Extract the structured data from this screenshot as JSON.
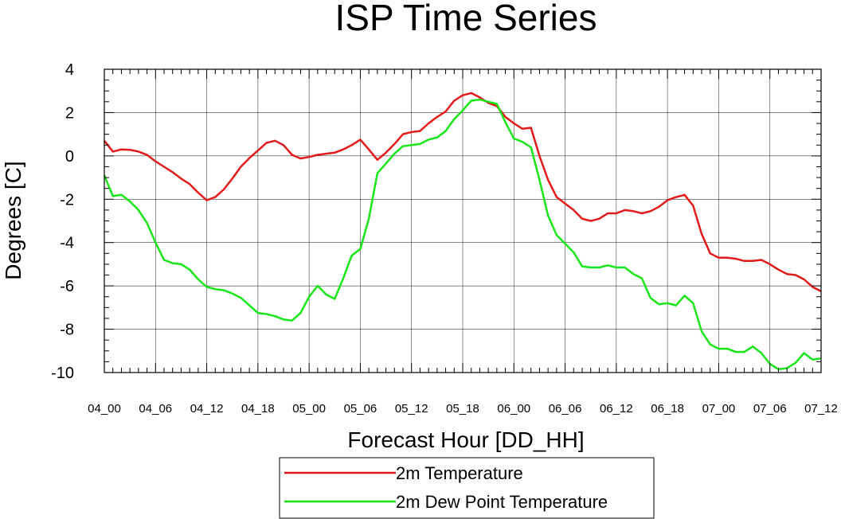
{
  "chart_data": {
    "type": "line",
    "title": "ISP Time Series",
    "xlabel": "Forecast Hour [DD_HH]",
    "ylabel": "Degrees [C]",
    "xlim": [
      0,
      84
    ],
    "ylim": [
      -10,
      4
    ],
    "x_tick_labels": [
      "04_00",
      "04_06",
      "04_12",
      "04_18",
      "05_00",
      "05_06",
      "05_12",
      "05_18",
      "06_00",
      "06_06",
      "06_12",
      "06_18",
      "07_00",
      "07_06",
      "07_12"
    ],
    "y_ticks": [
      4,
      2,
      0,
      -2,
      -4,
      -6,
      -8,
      -10
    ],
    "grid": true,
    "legend_position": "bottom-center",
    "series": [
      {
        "name": "2m Temperature",
        "color": "#e31a1a",
        "x": [
          0,
          1,
          2,
          3,
          4,
          5,
          6,
          7,
          8,
          9,
          10,
          11,
          12,
          13,
          14,
          15,
          16,
          17,
          18,
          19,
          20,
          21,
          22,
          23,
          24,
          25,
          26,
          27,
          28,
          29,
          30,
          31,
          32,
          33,
          34,
          35,
          36,
          37,
          38,
          39,
          40,
          41,
          42,
          43,
          44,
          45,
          46,
          47,
          48,
          49,
          50,
          51,
          52,
          53,
          54,
          55,
          56,
          57,
          58,
          59,
          60,
          61,
          62,
          63,
          64,
          65,
          66,
          67,
          68,
          69,
          70,
          71,
          72,
          73,
          74,
          75,
          76,
          77,
          78,
          79,
          80,
          81,
          82,
          83,
          84
        ],
        "values": [
          0.7,
          0.2,
          0.3,
          0.28,
          0.2,
          0.05,
          -0.25,
          -0.5,
          -0.75,
          -1.05,
          -1.3,
          -1.7,
          -2.05,
          -1.9,
          -1.55,
          -1.05,
          -0.5,
          -0.1,
          0.25,
          0.6,
          0.7,
          0.5,
          0.05,
          -0.12,
          -0.05,
          0.05,
          0.1,
          0.15,
          0.3,
          0.5,
          0.75,
          0.3,
          -0.18,
          0.15,
          0.55,
          1.0,
          1.1,
          1.15,
          1.5,
          1.8,
          2.05,
          2.55,
          2.8,
          2.9,
          2.7,
          2.45,
          2.3,
          1.8,
          1.5,
          1.25,
          1.3,
          0.0,
          -1.1,
          -1.9,
          -2.2,
          -2.5,
          -2.9,
          -3.0,
          -2.9,
          -2.65,
          -2.65,
          -2.5,
          -2.55,
          -2.65,
          -2.55,
          -2.35,
          -2.05,
          -1.9,
          -1.8,
          -2.3,
          -3.6,
          -4.5,
          -4.7,
          -4.7,
          -4.75,
          -4.85,
          -4.85,
          -4.8,
          -5.0,
          -5.25,
          -5.45,
          -5.5,
          -5.7,
          -6.05,
          -6.25
        ]
      },
      {
        "name": "2m Dew Point Temperature",
        "color": "#19e619",
        "x": [
          0,
          1,
          2,
          3,
          4,
          5,
          6,
          7,
          8,
          9,
          10,
          11,
          12,
          13,
          14,
          15,
          16,
          17,
          18,
          19,
          20,
          21,
          22,
          23,
          24,
          25,
          26,
          27,
          28,
          29,
          30,
          31,
          32,
          33,
          34,
          35,
          36,
          37,
          38,
          39,
          40,
          41,
          42,
          43,
          44,
          45,
          46,
          47,
          48,
          49,
          50,
          51,
          52,
          53,
          54,
          55,
          56,
          57,
          58,
          59,
          60,
          61,
          62,
          63,
          64,
          65,
          66,
          67,
          68,
          69,
          70,
          71,
          72,
          73,
          74,
          75,
          76,
          77,
          78,
          79,
          80,
          81,
          82,
          83,
          84
        ],
        "values": [
          -0.9,
          -1.85,
          -1.8,
          -2.1,
          -2.5,
          -3.1,
          -4.0,
          -4.8,
          -4.95,
          -5.0,
          -5.25,
          -5.7,
          -6.05,
          -6.15,
          -6.2,
          -6.35,
          -6.55,
          -6.9,
          -7.25,
          -7.3,
          -7.4,
          -7.55,
          -7.6,
          -7.25,
          -6.5,
          -6.0,
          -6.4,
          -6.6,
          -5.65,
          -4.6,
          -4.3,
          -2.9,
          -0.8,
          -0.35,
          0.1,
          0.45,
          0.5,
          0.55,
          0.75,
          0.85,
          1.15,
          1.7,
          2.1,
          2.55,
          2.6,
          2.5,
          2.4,
          1.55,
          0.8,
          0.65,
          0.4,
          -1.1,
          -2.75,
          -3.65,
          -4.05,
          -4.45,
          -5.1,
          -5.15,
          -5.15,
          -5.05,
          -5.15,
          -5.15,
          -5.45,
          -5.65,
          -6.55,
          -6.85,
          -6.8,
          -6.9,
          -6.45,
          -6.8,
          -8.1,
          -8.7,
          -8.9,
          -8.9,
          -9.05,
          -9.05,
          -8.8,
          -9.1,
          -9.6,
          -9.85,
          -9.8,
          -9.55,
          -9.1,
          -9.4,
          -9.35
        ]
      }
    ]
  }
}
